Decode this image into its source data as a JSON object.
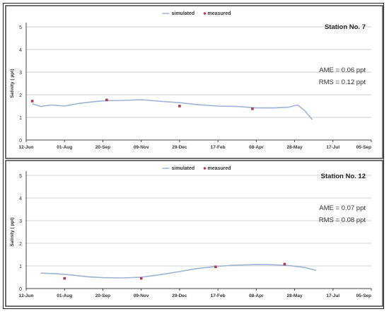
{
  "colors": {
    "simulated_line": "#9db3d3",
    "measured_marker": "#b23a4e",
    "axis": "#444444",
    "gridline": "#cfcfcf",
    "text": "#333333"
  },
  "chart_data": [
    {
      "type": "line",
      "title": "Station No. 7",
      "xlabel": "",
      "ylabel": "Salinity ( ppt)",
      "legend": [
        "simulated",
        "measured"
      ],
      "legend_position": "top-center",
      "grid": "horizontal",
      "x_unit": "day",
      "xlim": [
        "2012-06-12",
        "2013-09-05"
      ],
      "ylim": [
        0,
        5
      ],
      "x_ticks": [
        "12-Jun",
        "01-Aug",
        "20-Sep",
        "09-Nov",
        "29-Dec",
        "17-Feb",
        "08-Apr",
        "28-May",
        "17-Jul",
        "05-Sep"
      ],
      "y_ticks": [
        "0",
        "1",
        "2",
        "3",
        "4",
        "5"
      ],
      "annotations": [
        "AME = 0.06 ppt",
        "RMS = 0.12 ppt"
      ],
      "series": [
        {
          "name": "simulated",
          "type": "line",
          "x": [
            "2012-06-20",
            "2012-07-01",
            "2012-07-15",
            "2012-08-01",
            "2012-08-20",
            "2012-09-10",
            "2012-09-25",
            "2012-10-15",
            "2012-11-09",
            "2012-12-01",
            "2012-12-29",
            "2013-01-20",
            "2013-02-17",
            "2013-03-15",
            "2013-04-08",
            "2013-05-01",
            "2013-05-20",
            "2013-06-01",
            "2013-06-10",
            "2013-06-20"
          ],
          "y": [
            1.6,
            1.48,
            1.55,
            1.5,
            1.62,
            1.7,
            1.74,
            1.75,
            1.78,
            1.72,
            1.65,
            1.57,
            1.5,
            1.48,
            1.42,
            1.42,
            1.45,
            1.55,
            1.3,
            0.9
          ]
        },
        {
          "name": "measured",
          "type": "scatter",
          "x": [
            "2012-06-20",
            "2012-09-25",
            "2012-12-29",
            "2013-04-03"
          ],
          "y": [
            1.72,
            1.77,
            1.5,
            1.38
          ]
        }
      ]
    },
    {
      "type": "line",
      "title": "Station No. 12",
      "xlabel": "",
      "ylabel": "Salinity ( ppt)",
      "legend": [
        "simulated",
        "measured"
      ],
      "legend_position": "top-center",
      "grid": "horizontal",
      "x_unit": "day",
      "xlim": [
        "2012-06-12",
        "2013-09-05"
      ],
      "ylim": [
        0,
        5
      ],
      "x_ticks": [
        "12-Jun",
        "01-Aug",
        "20-Sep",
        "09-Nov",
        "29-Dec",
        "17-Feb",
        "08-Apr",
        "28-May",
        "17-Jul",
        "05-Sep"
      ],
      "y_ticks": [
        "0",
        "1",
        "2",
        "3",
        "4",
        "5"
      ],
      "annotations": [
        "AME = 0.07 ppt",
        "RMS = 0.08 ppt"
      ],
      "series": [
        {
          "name": "simulated",
          "type": "line",
          "x": [
            "2012-07-01",
            "2012-07-20",
            "2012-08-10",
            "2012-09-01",
            "2012-09-20",
            "2012-10-15",
            "2012-11-09",
            "2012-12-01",
            "2012-12-29",
            "2013-01-20",
            "2013-02-17",
            "2013-03-10",
            "2013-04-08",
            "2013-05-01",
            "2013-05-20",
            "2013-06-10",
            "2013-06-25"
          ],
          "y": [
            0.68,
            0.66,
            0.6,
            0.52,
            0.48,
            0.47,
            0.5,
            0.6,
            0.75,
            0.88,
            0.98,
            1.03,
            1.06,
            1.05,
            1.02,
            0.93,
            0.8
          ]
        },
        {
          "name": "measured",
          "type": "scatter",
          "x": [
            "2012-08-01",
            "2012-11-09",
            "2013-02-14",
            "2013-05-15"
          ],
          "y": [
            0.45,
            0.45,
            0.96,
            1.08
          ]
        }
      ]
    }
  ]
}
